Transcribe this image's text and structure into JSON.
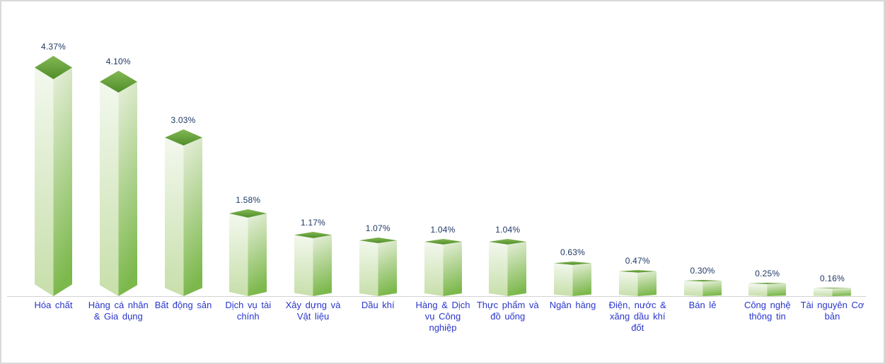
{
  "chart_data": {
    "type": "bar",
    "style": "3d-column",
    "title": "",
    "xlabel": "",
    "ylabel": "",
    "ylim": [
      0,
      4.8
    ],
    "grid": false,
    "legend": false,
    "categories": [
      "Hóa chất",
      "Hàng cá nhân & Gia dụng",
      "Bất động sản",
      "Dịch vụ tài chính",
      "Xây dựng và Vật liệu",
      "Dầu khí",
      "Hàng & Dịch vụ Công nghiệp",
      "Thực phẩm và đồ uống",
      "Ngân hàng",
      "Điện, nước & xăng dầu khí đốt",
      "Bán lẻ",
      "Công nghệ thông tin",
      "Tài nguyên Cơ bản"
    ],
    "category_lines": [
      [
        "Hóa chất"
      ],
      [
        "Hàng cá nhân",
        "& Gia dụng"
      ],
      [
        "Bất động sản"
      ],
      [
        "Dịch vụ tài",
        "chính"
      ],
      [
        "Xây dựng và",
        "Vật liệu"
      ],
      [
        "Dầu khí"
      ],
      [
        "Hàng & Dịch",
        "vụ Công",
        "nghiệp"
      ],
      [
        "Thực phẩm và",
        "đồ uống"
      ],
      [
        "Ngân hàng"
      ],
      [
        "Điện, nước &",
        "xăng dầu khí",
        "đốt"
      ],
      [
        "Bán lẻ"
      ],
      [
        "Công nghệ",
        "thông tin"
      ],
      [
        "Tài nguyên Cơ",
        "bản"
      ]
    ],
    "values": [
      4.37,
      4.1,
      3.03,
      1.58,
      1.17,
      1.07,
      1.04,
      1.04,
      0.63,
      0.47,
      0.3,
      0.25,
      0.16
    ],
    "value_labels": [
      "4.37%",
      "4.10%",
      "3.03%",
      "1.58%",
      "1.17%",
      "1.07%",
      "1.04%",
      "1.04%",
      "0.63%",
      "0.47%",
      "0.30%",
      "0.25%",
      "0.16%"
    ],
    "colors": {
      "bar_top_gradient": [
        "#83B854",
        "#4F8D29"
      ],
      "bar_left_face_gradient": [
        "#F3F8EE",
        "#C7DFAA"
      ],
      "bar_right_face_gradient": [
        "#E8F0DC",
        "#7CB84C"
      ],
      "value_label_color": "#1F3864",
      "category_label_color": "#2936CC",
      "baseline_color": "#D3D3D3",
      "frame_border_color": "#D9D9D9",
      "background": "#FFFFFF"
    }
  }
}
